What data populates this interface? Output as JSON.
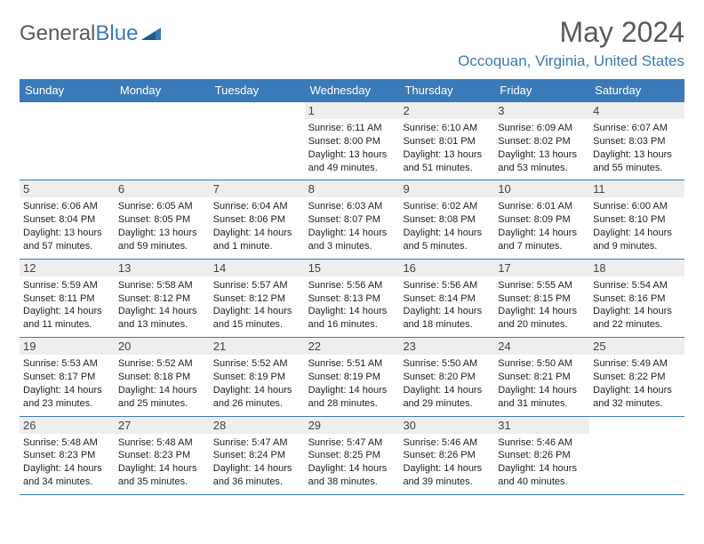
{
  "logo": {
    "text1": "General",
    "text2": "Blue"
  },
  "title": "May 2024",
  "location": "Occoquan, Virginia, United States",
  "colors": {
    "header_bg": "#3a7ab8",
    "header_text": "#ffffff",
    "divider": "#3a7ab8",
    "daynum_bg": "#eeeeee",
    "text": "#222222",
    "title_color": "#5a5a5a"
  },
  "dayNames": [
    "Sunday",
    "Monday",
    "Tuesday",
    "Wednesday",
    "Thursday",
    "Friday",
    "Saturday"
  ],
  "weeks": [
    [
      null,
      null,
      null,
      {
        "n": "1",
        "sr": "Sunrise: 6:11 AM",
        "ss": "Sunset: 8:00 PM",
        "dl": "Daylight: 13 hours and 49 minutes."
      },
      {
        "n": "2",
        "sr": "Sunrise: 6:10 AM",
        "ss": "Sunset: 8:01 PM",
        "dl": "Daylight: 13 hours and 51 minutes."
      },
      {
        "n": "3",
        "sr": "Sunrise: 6:09 AM",
        "ss": "Sunset: 8:02 PM",
        "dl": "Daylight: 13 hours and 53 minutes."
      },
      {
        "n": "4",
        "sr": "Sunrise: 6:07 AM",
        "ss": "Sunset: 8:03 PM",
        "dl": "Daylight: 13 hours and 55 minutes."
      }
    ],
    [
      {
        "n": "5",
        "sr": "Sunrise: 6:06 AM",
        "ss": "Sunset: 8:04 PM",
        "dl": "Daylight: 13 hours and 57 minutes."
      },
      {
        "n": "6",
        "sr": "Sunrise: 6:05 AM",
        "ss": "Sunset: 8:05 PM",
        "dl": "Daylight: 13 hours and 59 minutes."
      },
      {
        "n": "7",
        "sr": "Sunrise: 6:04 AM",
        "ss": "Sunset: 8:06 PM",
        "dl": "Daylight: 14 hours and 1 minute."
      },
      {
        "n": "8",
        "sr": "Sunrise: 6:03 AM",
        "ss": "Sunset: 8:07 PM",
        "dl": "Daylight: 14 hours and 3 minutes."
      },
      {
        "n": "9",
        "sr": "Sunrise: 6:02 AM",
        "ss": "Sunset: 8:08 PM",
        "dl": "Daylight: 14 hours and 5 minutes."
      },
      {
        "n": "10",
        "sr": "Sunrise: 6:01 AM",
        "ss": "Sunset: 8:09 PM",
        "dl": "Daylight: 14 hours and 7 minutes."
      },
      {
        "n": "11",
        "sr": "Sunrise: 6:00 AM",
        "ss": "Sunset: 8:10 PM",
        "dl": "Daylight: 14 hours and 9 minutes."
      }
    ],
    [
      {
        "n": "12",
        "sr": "Sunrise: 5:59 AM",
        "ss": "Sunset: 8:11 PM",
        "dl": "Daylight: 14 hours and 11 minutes."
      },
      {
        "n": "13",
        "sr": "Sunrise: 5:58 AM",
        "ss": "Sunset: 8:12 PM",
        "dl": "Daylight: 14 hours and 13 minutes."
      },
      {
        "n": "14",
        "sr": "Sunrise: 5:57 AM",
        "ss": "Sunset: 8:12 PM",
        "dl": "Daylight: 14 hours and 15 minutes."
      },
      {
        "n": "15",
        "sr": "Sunrise: 5:56 AM",
        "ss": "Sunset: 8:13 PM",
        "dl": "Daylight: 14 hours and 16 minutes."
      },
      {
        "n": "16",
        "sr": "Sunrise: 5:56 AM",
        "ss": "Sunset: 8:14 PM",
        "dl": "Daylight: 14 hours and 18 minutes."
      },
      {
        "n": "17",
        "sr": "Sunrise: 5:55 AM",
        "ss": "Sunset: 8:15 PM",
        "dl": "Daylight: 14 hours and 20 minutes."
      },
      {
        "n": "18",
        "sr": "Sunrise: 5:54 AM",
        "ss": "Sunset: 8:16 PM",
        "dl": "Daylight: 14 hours and 22 minutes."
      }
    ],
    [
      {
        "n": "19",
        "sr": "Sunrise: 5:53 AM",
        "ss": "Sunset: 8:17 PM",
        "dl": "Daylight: 14 hours and 23 minutes."
      },
      {
        "n": "20",
        "sr": "Sunrise: 5:52 AM",
        "ss": "Sunset: 8:18 PM",
        "dl": "Daylight: 14 hours and 25 minutes."
      },
      {
        "n": "21",
        "sr": "Sunrise: 5:52 AM",
        "ss": "Sunset: 8:19 PM",
        "dl": "Daylight: 14 hours and 26 minutes."
      },
      {
        "n": "22",
        "sr": "Sunrise: 5:51 AM",
        "ss": "Sunset: 8:19 PM",
        "dl": "Daylight: 14 hours and 28 minutes."
      },
      {
        "n": "23",
        "sr": "Sunrise: 5:50 AM",
        "ss": "Sunset: 8:20 PM",
        "dl": "Daylight: 14 hours and 29 minutes."
      },
      {
        "n": "24",
        "sr": "Sunrise: 5:50 AM",
        "ss": "Sunset: 8:21 PM",
        "dl": "Daylight: 14 hours and 31 minutes."
      },
      {
        "n": "25",
        "sr": "Sunrise: 5:49 AM",
        "ss": "Sunset: 8:22 PM",
        "dl": "Daylight: 14 hours and 32 minutes."
      }
    ],
    [
      {
        "n": "26",
        "sr": "Sunrise: 5:48 AM",
        "ss": "Sunset: 8:23 PM",
        "dl": "Daylight: 14 hours and 34 minutes."
      },
      {
        "n": "27",
        "sr": "Sunrise: 5:48 AM",
        "ss": "Sunset: 8:23 PM",
        "dl": "Daylight: 14 hours and 35 minutes."
      },
      {
        "n": "28",
        "sr": "Sunrise: 5:47 AM",
        "ss": "Sunset: 8:24 PM",
        "dl": "Daylight: 14 hours and 36 minutes."
      },
      {
        "n": "29",
        "sr": "Sunrise: 5:47 AM",
        "ss": "Sunset: 8:25 PM",
        "dl": "Daylight: 14 hours and 38 minutes."
      },
      {
        "n": "30",
        "sr": "Sunrise: 5:46 AM",
        "ss": "Sunset: 8:26 PM",
        "dl": "Daylight: 14 hours and 39 minutes."
      },
      {
        "n": "31",
        "sr": "Sunrise: 5:46 AM",
        "ss": "Sunset: 8:26 PM",
        "dl": "Daylight: 14 hours and 40 minutes."
      },
      null
    ]
  ]
}
